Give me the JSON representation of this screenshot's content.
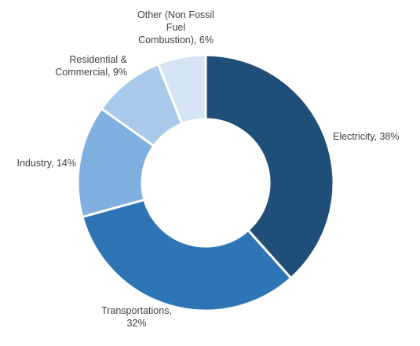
{
  "chart_data": {
    "type": "pie",
    "variant": "donut",
    "title": "",
    "slices": [
      {
        "label_lines": [
          "Electricity, 38%"
        ],
        "category": "Electricity",
        "value": 38,
        "color": "#1F4E79"
      },
      {
        "label_lines": [
          "Transportations,",
          "32%"
        ],
        "category": "Transportations",
        "value": 32,
        "color": "#2E75B6"
      },
      {
        "label_lines": [
          "Industry, 14%"
        ],
        "category": "Industry",
        "value": 14,
        "color": "#7FB0E0"
      },
      {
        "label_lines": [
          "Residential &",
          "Commercial, 9%"
        ],
        "category": "Residential & Commercial",
        "value": 9,
        "color": "#A9C9EA"
      },
      {
        "label_lines": [
          "Other (Non Fossil",
          "Fuel",
          "Combustion), 6%"
        ],
        "category": "Other (Non Fossil Fuel Combustion)",
        "value": 6,
        "color": "#D5E4F4"
      }
    ],
    "start_angle": "12 o'clock",
    "direction": "clockwise",
    "legend": "none"
  }
}
